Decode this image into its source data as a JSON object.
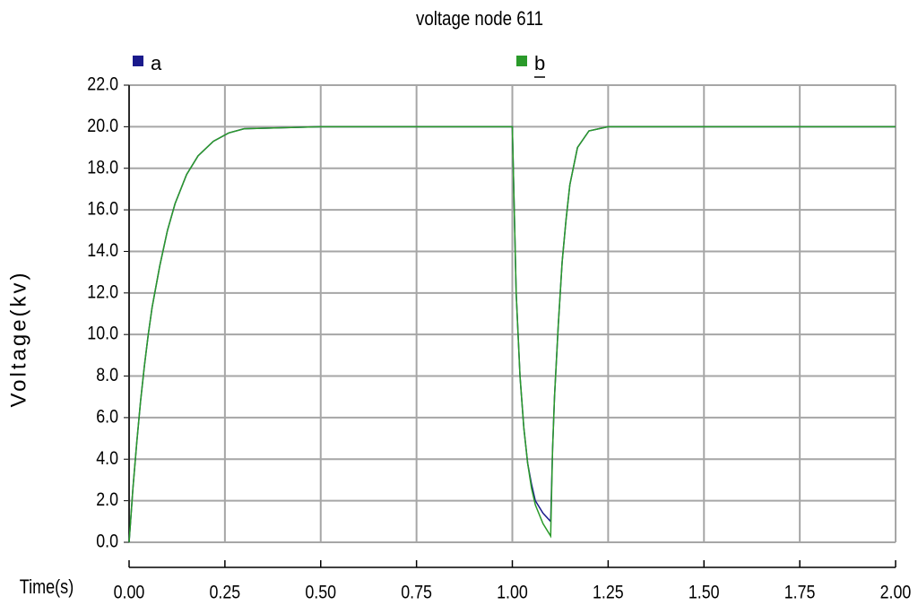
{
  "chart_data": {
    "type": "line",
    "title": "voltage node 611",
    "x_label": "Time(s)",
    "y_label": "Voltage(kv)",
    "x": [
      0,
      0.01,
      0.02,
      0.03,
      0.04,
      0.05,
      0.06,
      0.08,
      0.1,
      0.12,
      0.15,
      0.18,
      0.22,
      0.26,
      0.3,
      0.5,
      1.0,
      1.005,
      1.01,
      1.02,
      1.03,
      1.04,
      1.05,
      1.06,
      1.08,
      1.1,
      1.105,
      1.11,
      1.12,
      1.13,
      1.14,
      1.15,
      1.17,
      1.2,
      1.25,
      1.5,
      2.0
    ],
    "series": [
      {
        "name": "a",
        "color": "#1a1a8c",
        "values": [
          0,
          2.6,
          4.8,
          6.8,
          8.5,
          10,
          11.3,
          13.3,
          15,
          16.3,
          17.7,
          18.6,
          19.3,
          19.7,
          19.9,
          20,
          20,
          16,
          12,
          8,
          5.5,
          3.8,
          2.8,
          2.0,
          1.4,
          1.0,
          4.5,
          7,
          10.5,
          13.5,
          15.5,
          17.2,
          19,
          19.8,
          20,
          20,
          20
        ]
      },
      {
        "name": "b",
        "color": "#2a9a2a",
        "values": [
          0,
          2.6,
          4.8,
          6.8,
          8.5,
          10,
          11.3,
          13.3,
          15,
          16.3,
          17.7,
          18.6,
          19.3,
          19.7,
          19.9,
          20,
          20,
          16,
          12,
          8,
          5.5,
          3.8,
          2.6,
          1.8,
          0.9,
          0.3,
          4.5,
          7,
          10.5,
          13.5,
          15.5,
          17.2,
          19,
          19.8,
          20,
          20,
          20
        ]
      }
    ],
    "xlim": [
      0,
      2
    ],
    "ylim": [
      0,
      22
    ],
    "xticks": [
      {
        "value": 0,
        "label": "0.00"
      },
      {
        "value": 0.25,
        "label": "0.25"
      },
      {
        "value": 0.5,
        "label": "0.50"
      },
      {
        "value": 0.75,
        "label": "0.75"
      },
      {
        "value": 1,
        "label": "1.00"
      },
      {
        "value": 1.25,
        "label": "1.25"
      },
      {
        "value": 1.5,
        "label": "1.50"
      },
      {
        "value": 1.75,
        "label": "1.75"
      },
      {
        "value": 2,
        "label": "2.00"
      }
    ],
    "yticks": [
      {
        "value": 0,
        "label": "0.0"
      },
      {
        "value": 2,
        "label": "2.0"
      },
      {
        "value": 4,
        "label": "4.0"
      },
      {
        "value": 6,
        "label": "6.0"
      },
      {
        "value": 8,
        "label": "8.0"
      },
      {
        "value": 10,
        "label": "10.0"
      },
      {
        "value": 12,
        "label": "12.0"
      },
      {
        "value": 14,
        "label": "14.0"
      },
      {
        "value": 16,
        "label": "16.0"
      },
      {
        "value": 18,
        "label": "18.0"
      },
      {
        "value": 20,
        "label": "20.0"
      },
      {
        "value": 22,
        "label": "22.0"
      }
    ],
    "grid": true
  }
}
